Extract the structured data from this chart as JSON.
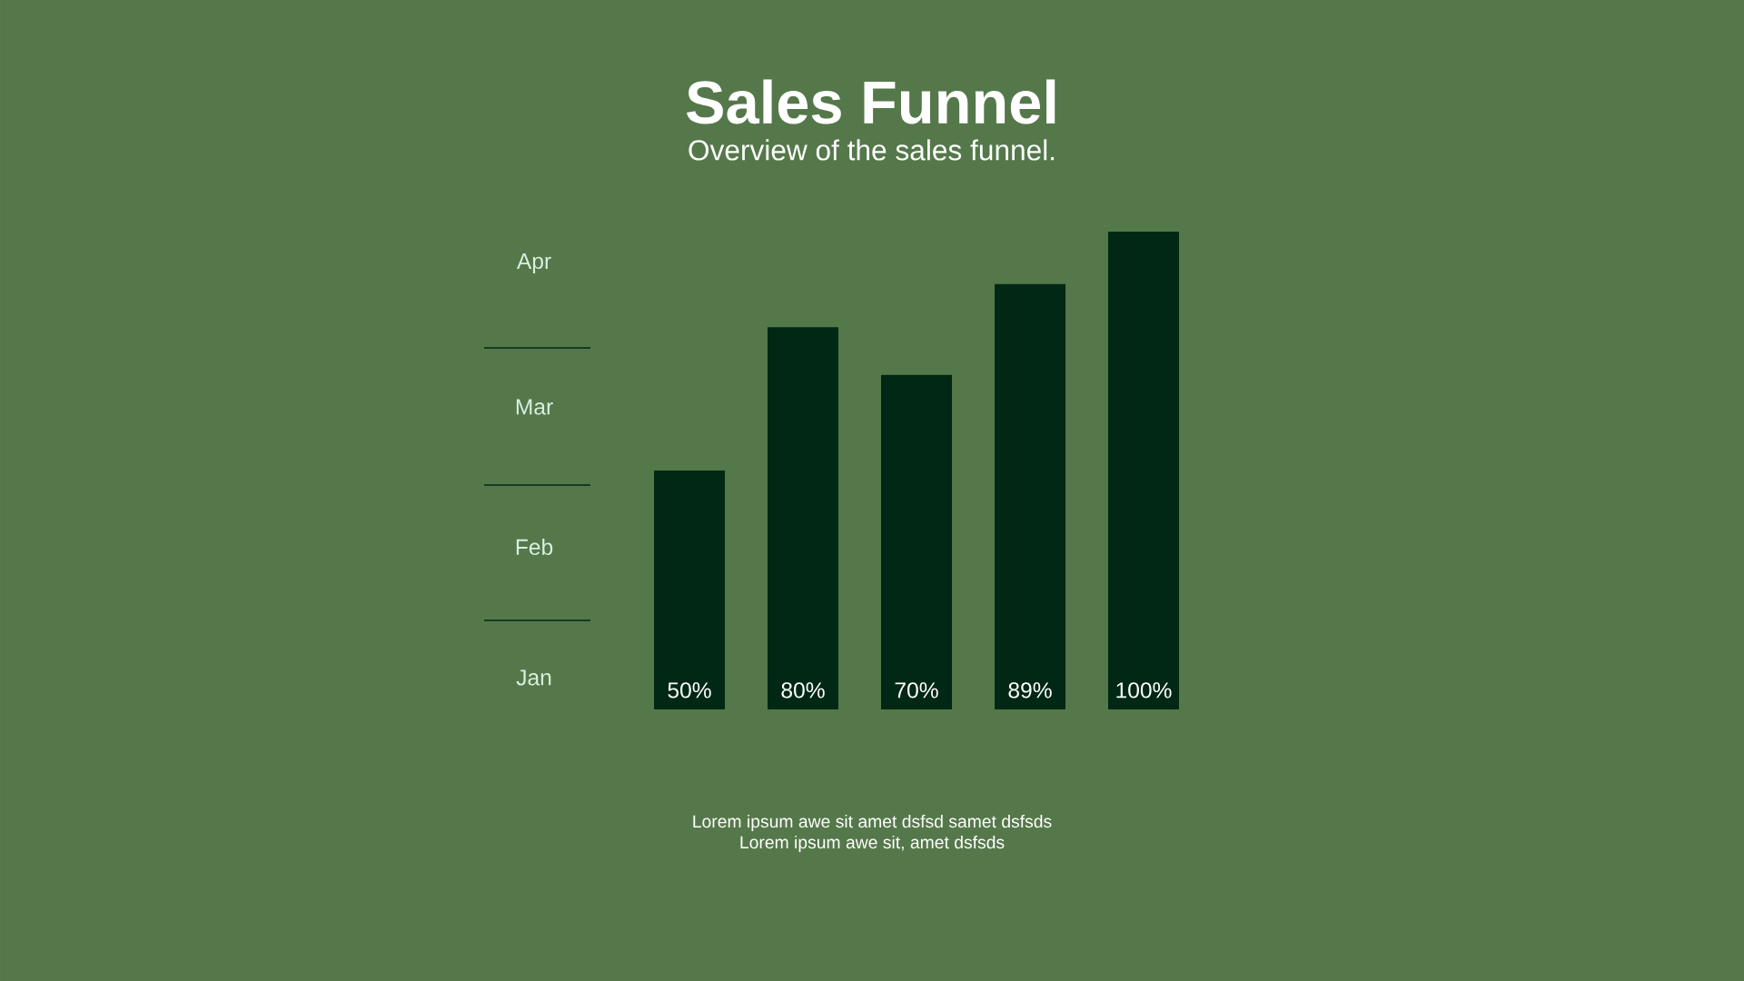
{
  "chart_data": {
    "type": "bar",
    "title": "Sales Funnel",
    "subtitle": "Overview of the sales funnel.",
    "categories": [
      null,
      null,
      null,
      null,
      null
    ],
    "values": [
      50,
      80,
      70,
      89,
      100
    ],
    "value_labels": [
      "50%",
      "80%",
      "70%",
      "89%",
      "100%"
    ],
    "color": "#002814",
    "ylim": [
      0,
      100
    ],
    "annotations": [
      "Apr",
      "Mar",
      "Feb",
      "Jan",
      "Lorem ipsum awe sit amet dsfsd samet dsfsds",
      "Lorem ipsum awe sit, amet dsfsds"
    ]
  }
}
